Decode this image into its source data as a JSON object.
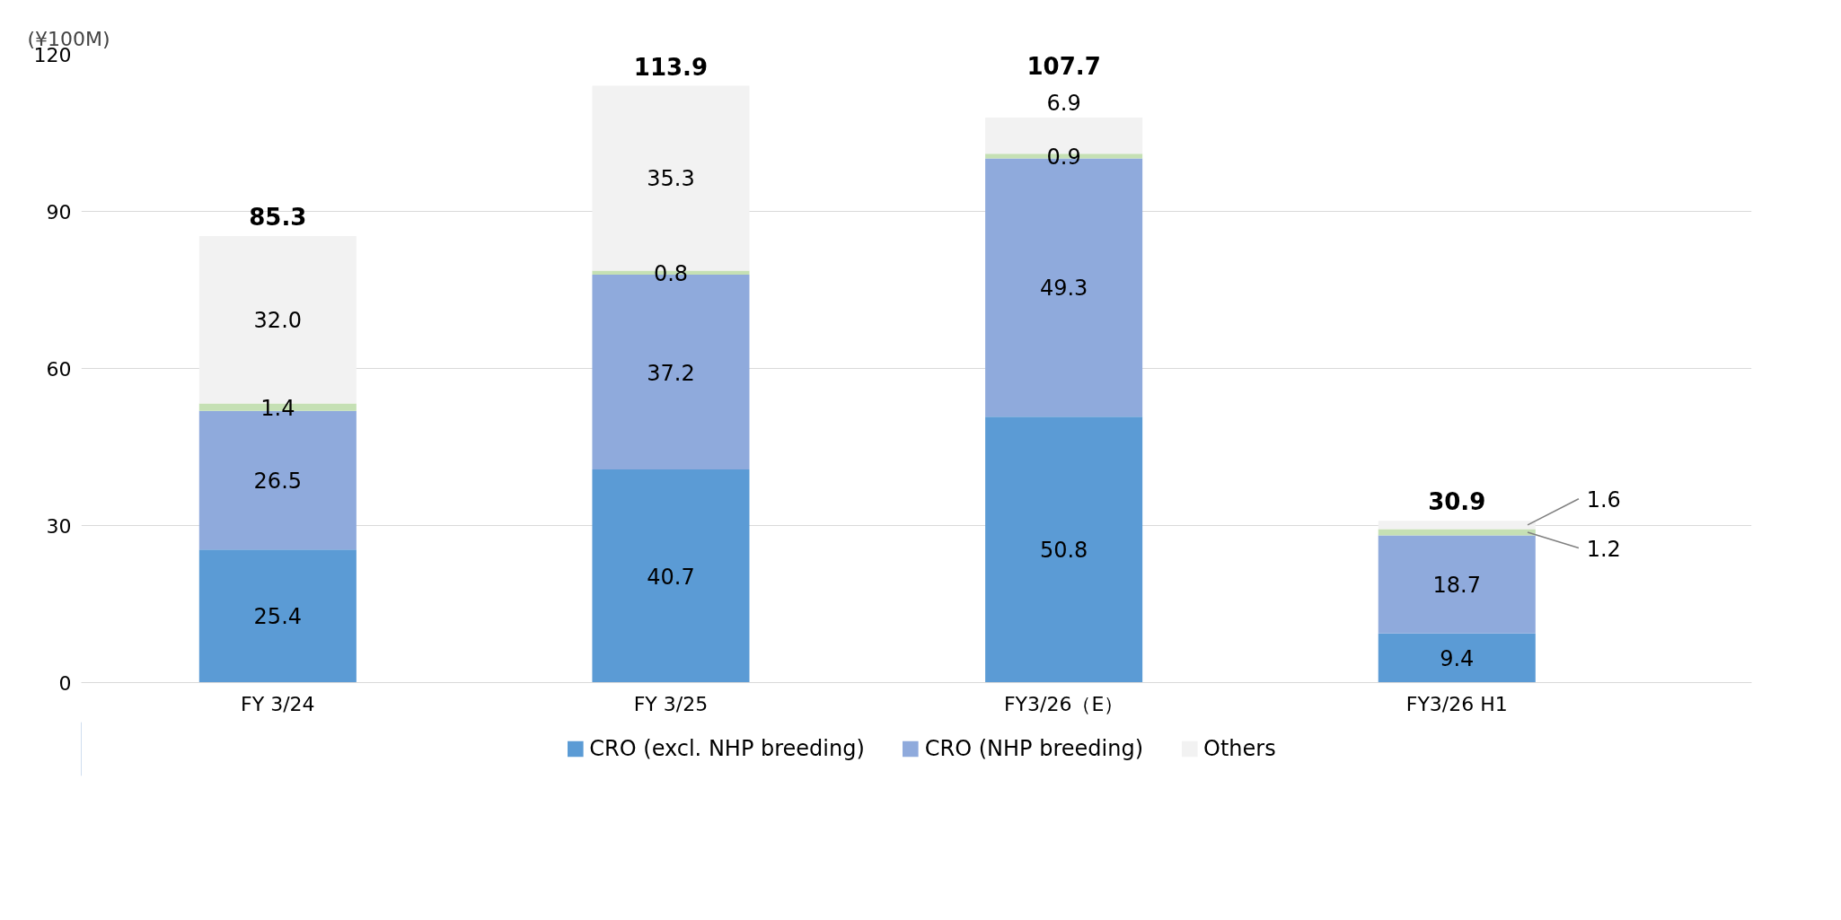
{
  "chart_data": {
    "type": "bar",
    "stacked": true,
    "ylabel": "(¥100M)",
    "categories": [
      "FY 3/24",
      "FY 3/25",
      "FY3/26（E）",
      "FY3/26 H1"
    ],
    "series": [
      {
        "name": "CRO (excl. NHP breeding)",
        "color": "#5b9bd5",
        "values": [
          25.4,
          40.7,
          50.8,
          9.4
        ]
      },
      {
        "name": "CRO (NHP breeding)",
        "color": "#8faadc",
        "values": [
          26.5,
          37.2,
          49.3,
          18.7
        ]
      },
      {
        "color": "#c5e0b4",
        "values": [
          1.4,
          0.8,
          0.9,
          1.2
        ]
      },
      {
        "name": "Others",
        "color": "#f2f2f2",
        "values": [
          32.0,
          35.3,
          6.9,
          1.6
        ],
        "value_labels": [
          "32.0",
          "35.3",
          "6.9",
          "1.6"
        ]
      }
    ],
    "totals": [
      "85.3",
      "113.9",
      "107.7",
      "30.9"
    ],
    "data_labels": true,
    "ylim": [
      0,
      120
    ],
    "yticks": [
      0,
      30,
      60,
      90,
      120
    ],
    "grid": "y",
    "legend": "bottom"
  }
}
